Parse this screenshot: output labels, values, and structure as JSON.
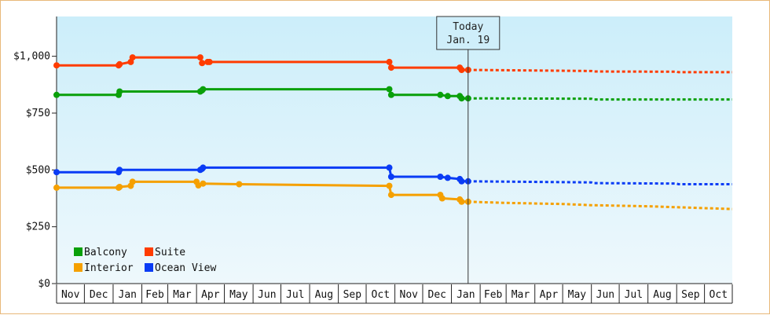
{
  "chart_data": {
    "type": "line",
    "x_axis": {
      "months": [
        "Nov",
        "Dec",
        "Jan",
        "Feb",
        "Mar",
        "Apr",
        "May",
        "Jun",
        "Jul",
        "Aug",
        "Sep",
        "Oct",
        "Nov",
        "Dec",
        "Jan",
        "Feb",
        "Mar",
        "Apr",
        "May",
        "Jun",
        "Jul",
        "Aug",
        "Sep",
        "Oct"
      ],
      "start": "2017-11-01",
      "end": "2019-10-31"
    },
    "y_axis": {
      "ticks": [
        0,
        250,
        500,
        750,
        1000
      ],
      "tick_labels": [
        "$0",
        "$250",
        "$500",
        "$750",
        "$1,000"
      ],
      "ylim": [
        0,
        1175
      ]
    },
    "today": {
      "date": "2019-01-19",
      "label_line1": "Today",
      "label_line2": "Jan. 19"
    },
    "legend": {
      "placement": "bottom-left",
      "entries": [
        {
          "name": "Balcony",
          "color": "#0aa00a"
        },
        {
          "name": "Suite",
          "color": "#ff3c00"
        },
        {
          "name": "Interior",
          "color": "#f5a000"
        },
        {
          "name": "Ocean View",
          "color": "#0a3cf5"
        }
      ]
    },
    "series": [
      {
        "name": "Suite",
        "color": "#ff3c00",
        "points": [
          [
            "2017-11-01",
            960
          ],
          [
            "2018-01-07",
            960
          ],
          [
            "2018-01-08",
            965
          ],
          [
            "2018-01-20",
            975
          ],
          [
            "2018-01-22",
            995
          ],
          [
            "2018-04-05",
            995
          ],
          [
            "2018-04-07",
            970
          ],
          [
            "2018-04-13",
            975
          ],
          [
            "2018-04-15",
            975
          ],
          [
            "2018-10-26",
            975
          ],
          [
            "2018-10-28",
            950
          ],
          [
            "2019-01-10",
            950
          ],
          [
            "2019-01-12",
            940
          ],
          [
            "2019-01-19",
            940
          ]
        ],
        "forecast": [
          [
            "2019-01-19",
            940
          ],
          [
            "2019-06-01",
            935
          ],
          [
            "2019-06-03",
            933
          ],
          [
            "2019-09-01",
            932
          ],
          [
            "2019-09-03",
            930
          ],
          [
            "2019-10-31",
            930
          ]
        ]
      },
      {
        "name": "Balcony",
        "color": "#0aa00a",
        "points": [
          [
            "2017-11-01",
            830
          ],
          [
            "2018-01-07",
            830
          ],
          [
            "2018-01-08",
            845
          ],
          [
            "2018-04-05",
            845
          ],
          [
            "2018-04-07",
            850
          ],
          [
            "2018-04-08",
            855
          ],
          [
            "2018-10-26",
            855
          ],
          [
            "2018-10-28",
            830
          ],
          [
            "2018-12-20",
            830
          ],
          [
            "2018-12-28",
            825
          ],
          [
            "2019-01-10",
            825
          ],
          [
            "2019-01-12",
            815
          ],
          [
            "2019-01-19",
            815
          ]
        ],
        "forecast": [
          [
            "2019-01-19",
            815
          ],
          [
            "2019-06-01",
            813
          ],
          [
            "2019-06-03",
            810
          ],
          [
            "2019-10-31",
            810
          ]
        ]
      },
      {
        "name": "Ocean View",
        "color": "#0a3cf5",
        "points": [
          [
            "2017-11-01",
            490
          ],
          [
            "2018-01-07",
            490
          ],
          [
            "2018-01-08",
            500
          ],
          [
            "2018-04-05",
            500
          ],
          [
            "2018-04-07",
            505
          ],
          [
            "2018-04-08",
            510
          ],
          [
            "2018-10-26",
            510
          ],
          [
            "2018-10-28",
            470
          ],
          [
            "2018-12-20",
            470
          ],
          [
            "2018-12-28",
            465
          ],
          [
            "2019-01-10",
            460
          ],
          [
            "2019-01-12",
            450
          ],
          [
            "2019-01-19",
            450
          ]
        ],
        "forecast": [
          [
            "2019-01-19",
            450
          ],
          [
            "2019-06-01",
            445
          ],
          [
            "2019-06-03",
            442
          ],
          [
            "2019-09-01",
            440
          ],
          [
            "2019-09-03",
            437
          ],
          [
            "2019-10-31",
            437
          ]
        ]
      },
      {
        "name": "Interior",
        "color": "#f5a000",
        "points": [
          [
            "2017-11-01",
            422
          ],
          [
            "2018-01-07",
            422
          ],
          [
            "2018-01-08",
            425
          ],
          [
            "2018-01-20",
            430
          ],
          [
            "2018-01-22",
            448
          ],
          [
            "2018-04-01",
            448
          ],
          [
            "2018-04-03",
            432
          ],
          [
            "2018-04-08",
            440
          ],
          [
            "2018-05-17",
            437
          ],
          [
            "2018-10-26",
            430
          ],
          [
            "2018-10-28",
            390
          ],
          [
            "2018-12-20",
            390
          ],
          [
            "2018-12-22",
            375
          ],
          [
            "2019-01-10",
            370
          ],
          [
            "2019-01-12",
            360
          ],
          [
            "2019-01-19",
            360
          ]
        ],
        "forecast": [
          [
            "2019-01-19",
            360
          ],
          [
            "2019-03-01",
            355
          ],
          [
            "2019-05-01",
            350
          ],
          [
            "2019-06-01",
            345
          ],
          [
            "2019-08-01",
            340
          ],
          [
            "2019-10-31",
            328
          ]
        ]
      }
    ]
  }
}
